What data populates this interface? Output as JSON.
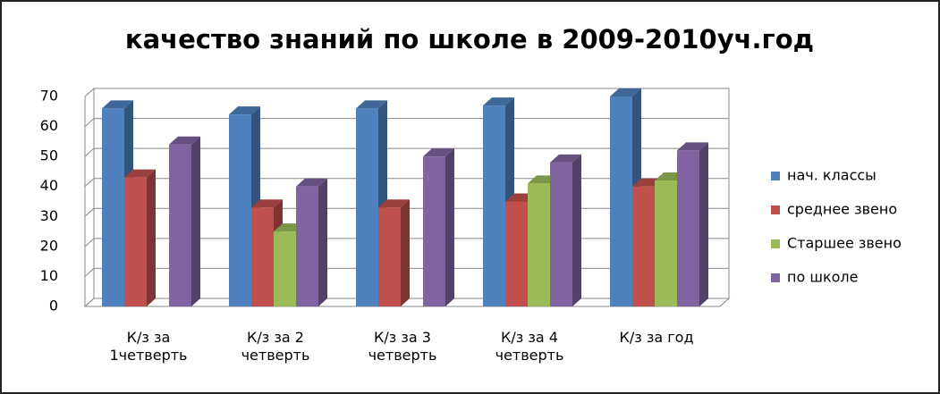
{
  "chart_data": {
    "type": "bar",
    "title": "качество знаний по школе в 2009-2010уч.год",
    "categories": [
      "К/з за 1четверть",
      "К/з за 2 четверть",
      "К/з за 3 четверть",
      "К/з за 4 четверть",
      "К/з за год"
    ],
    "series": [
      {
        "name": "нач. классы",
        "color": "#4f81bd",
        "values": [
          66,
          64,
          66,
          67,
          70
        ]
      },
      {
        "name": "среднее звено",
        "color": "#c0504d",
        "values": [
          43,
          33,
          33,
          35,
          40
        ]
      },
      {
        "name": "Старшее звено",
        "color": "#9bbb59",
        "values": [
          null,
          25,
          null,
          41,
          42
        ]
      },
      {
        "name": "по школе",
        "color": "#8064a2",
        "values": [
          54,
          40,
          50,
          48,
          52
        ]
      }
    ],
    "ylim": [
      0,
      70
    ],
    "yticks": [
      0,
      10,
      20,
      30,
      40,
      50,
      60,
      70
    ],
    "grid": true,
    "legend": "right"
  }
}
